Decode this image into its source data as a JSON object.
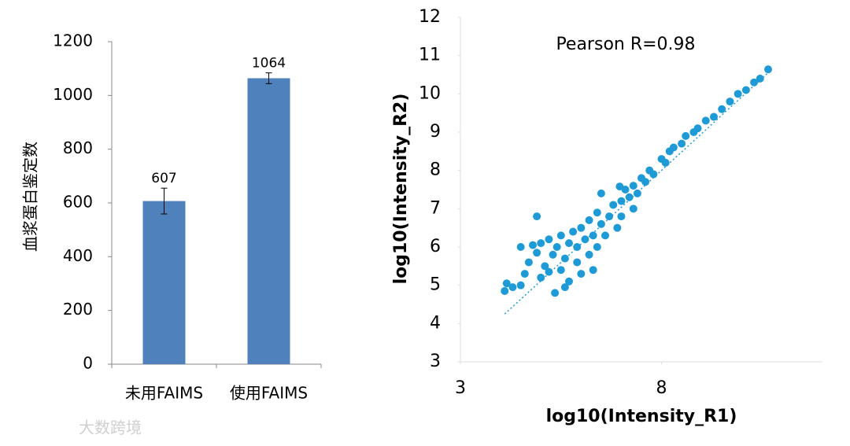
{
  "chart_data": [
    {
      "type": "bar",
      "ylabel": "血浆蛋白鉴定数",
      "categories": [
        "未用FAIMS",
        "使用FAIMS"
      ],
      "values": [
        607,
        1064
      ],
      "errors": [
        48,
        20
      ],
      "color": "#4f81bd",
      "ylim": [
        0,
        1200
      ],
      "yticks": [
        0,
        200,
        400,
        600,
        800,
        1000,
        1200
      ]
    },
    {
      "type": "scatter",
      "annotation": "Pearson R=0.98",
      "xlabel": "log10(Intensity_R1)",
      "ylabel": "log10(Intensity_R2)",
      "xlim": [
        3,
        12
      ],
      "xticks": [
        3,
        8
      ],
      "ylim": [
        3,
        12
      ],
      "yticks": [
        3,
        4,
        5,
        6,
        7,
        8,
        9,
        10,
        11,
        12
      ],
      "color": "#1e9bd7",
      "trendline": {
        "x": [
          4.1,
          10.7
        ],
        "y": [
          4.25,
          10.6
        ]
      },
      "x": [
        4.1,
        4.15,
        4.3,
        4.5,
        4.6,
        4.7,
        4.8,
        4.9,
        5.0,
        5.0,
        5.1,
        5.2,
        5.2,
        5.3,
        5.35,
        5.4,
        5.5,
        5.5,
        5.6,
        5.7,
        5.7,
        5.8,
        5.9,
        5.9,
        6.0,
        6.0,
        6.1,
        6.2,
        6.2,
        6.3,
        6.4,
        6.4,
        6.5,
        6.5,
        6.6,
        6.7,
        6.8,
        6.9,
        7.0,
        7.0,
        7.1,
        7.2,
        7.3,
        7.4,
        7.5,
        7.6,
        7.7,
        7.8,
        8.0,
        8.1,
        8.2,
        8.3,
        8.5,
        8.6,
        8.8,
        8.9,
        9.1,
        9.3,
        9.5,
        9.7,
        9.9,
        10.1,
        10.3,
        10.45,
        10.65,
        5.6,
        6.3,
        7.3,
        4.5,
        4.9,
        6.96
      ],
      "y": [
        4.85,
        5.05,
        4.95,
        5.0,
        5.3,
        5.6,
        6.05,
        5.85,
        6.1,
        5.2,
        5.5,
        5.35,
        6.2,
        5.8,
        4.8,
        6.0,
        5.4,
        6.3,
        5.7,
        5.1,
        6.1,
        6.4,
        5.6,
        6.0,
        6.5,
        5.3,
        6.2,
        5.8,
        6.7,
        6.3,
        6.0,
        6.9,
        6.6,
        7.4,
        6.3,
        6.8,
        7.1,
        6.5,
        7.2,
        6.8,
        7.5,
        7.3,
        7.6,
        7.4,
        7.8,
        7.7,
        8.0,
        7.9,
        8.3,
        8.2,
        8.5,
        8.6,
        8.7,
        8.9,
        9.0,
        9.1,
        9.3,
        9.4,
        9.6,
        9.8,
        10.0,
        10.1,
        10.3,
        10.4,
        10.64,
        4.95,
        5.4,
        7.0,
        6.0,
        6.8,
        7.58
      ]
    }
  ],
  "watermark": "大数跨境"
}
